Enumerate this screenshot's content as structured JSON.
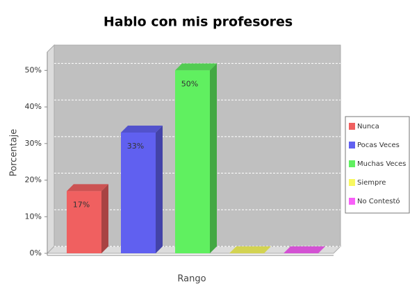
{
  "chart_data": {
    "type": "bar3d",
    "title": "Hablo con mis profesores",
    "x_label": "Rango",
    "y_label": "Porcentaje",
    "ylim": [
      0,
      55
    ],
    "yticks": [
      {
        "value": 0,
        "label": "0%"
      },
      {
        "value": 10,
        "label": "10%"
      },
      {
        "value": 20,
        "label": "20%"
      },
      {
        "value": 30,
        "label": "30%"
      },
      {
        "value": 40,
        "label": "40%"
      },
      {
        "value": 50,
        "label": "50%"
      }
    ],
    "grid": true,
    "legend": "right",
    "series": [
      {
        "name": "Nunca",
        "color": "#f06060",
        "values": [
          17
        ],
        "value_labels": [
          "17%"
        ]
      },
      {
        "name": "Pocas Veces",
        "color": "#6060f0",
        "values": [
          33
        ],
        "value_labels": [
          "33%"
        ]
      },
      {
        "name": "Muchas Veces",
        "color": "#60f060",
        "values": [
          50
        ],
        "value_labels": [
          "50%"
        ]
      },
      {
        "name": "Siempre",
        "color": "#f8f860",
        "values": [
          0
        ]
      },
      {
        "name": "No Contestó",
        "color": "#f860f8",
        "values": [
          0
        ]
      }
    ]
  }
}
